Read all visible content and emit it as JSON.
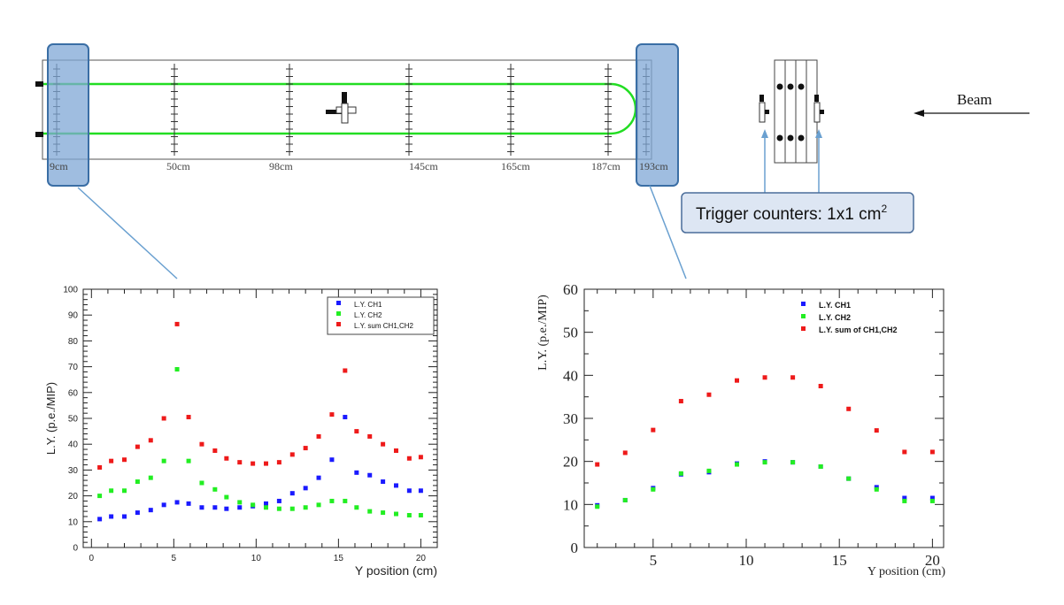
{
  "diagram": {
    "position_labels": [
      "9cm",
      "50cm",
      "98cm",
      "145cm",
      "165cm",
      "187cm",
      "193cm"
    ],
    "beam_label": "Beam",
    "trigger_label": "Trigger counters: 1x1 cm",
    "trigger_superscript": "2",
    "colors": {
      "fiber": "#22dd22",
      "highlight": "#7fa7d6",
      "highlight_border": "#3a6ea5",
      "callout_line": "#6aa0d0",
      "callout_bg": "#dde6f3"
    }
  },
  "chart_data": [
    {
      "type": "scatter",
      "title": "",
      "xlabel": "Y position (cm)",
      "ylabel": "L.Y. (p.e./MIP)",
      "xlim": [
        -0.5,
        21
      ],
      "ylim": [
        0,
        100
      ],
      "xticks": [
        0,
        5,
        10,
        15,
        20
      ],
      "yticks": [
        0,
        10,
        20,
        30,
        40,
        50,
        60,
        70,
        80,
        90,
        100
      ],
      "legend_position": "top-right",
      "series": [
        {
          "name": "L.Y. CH1",
          "color": "#1a1aff",
          "x": [
            0.5,
            1.2,
            2.0,
            2.8,
            3.6,
            4.4,
            5.2,
            5.9,
            6.7,
            7.5,
            8.2,
            9.0,
            9.8,
            10.6,
            11.4,
            12.2,
            13.0,
            13.8,
            14.6,
            15.4,
            16.1,
            16.9,
            17.7,
            18.5,
            19.3,
            20.0
          ],
          "y": [
            11,
            12,
            12,
            13.5,
            14.5,
            16.5,
            17.5,
            17,
            15.5,
            15.5,
            15,
            15.5,
            16,
            17,
            18,
            21,
            23,
            27,
            34,
            50.5,
            29,
            28,
            25.5,
            24,
            22,
            22
          ]
        },
        {
          "name": "L.Y. CH2",
          "color": "#22ee22",
          "x": [
            0.5,
            1.2,
            2.0,
            2.8,
            3.6,
            4.4,
            5.2,
            5.9,
            6.7,
            7.5,
            8.2,
            9.0,
            9.8,
            10.6,
            11.4,
            12.2,
            13.0,
            13.8,
            14.6,
            15.4,
            16.1,
            16.9,
            17.7,
            18.5,
            19.3,
            20.0
          ],
          "y": [
            20,
            22,
            22,
            25.5,
            27,
            33.5,
            69,
            33.5,
            25,
            22.5,
            19.5,
            17.5,
            16.5,
            15.5,
            15,
            15,
            15.5,
            16.5,
            18,
            18,
            15.5,
            14,
            13.5,
            13,
            12.5,
            12.5
          ]
        },
        {
          "name": "L.Y. sum CH1,CH2",
          "color": "#ee1a1a",
          "x": [
            0.5,
            1.2,
            2.0,
            2.8,
            3.6,
            4.4,
            5.2,
            5.9,
            6.7,
            7.5,
            8.2,
            9.0,
            9.8,
            10.6,
            11.4,
            12.2,
            13.0,
            13.8,
            14.6,
            15.4,
            16.1,
            16.9,
            17.7,
            18.5,
            19.3,
            20.0
          ],
          "y": [
            31,
            33.5,
            34,
            39,
            41.5,
            50,
            86.5,
            50.5,
            40,
            37.5,
            34.5,
            33,
            32.5,
            32.5,
            33,
            36,
            38.5,
            43,
            51.5,
            68.5,
            45,
            43,
            40,
            37.5,
            34.5,
            35
          ]
        }
      ]
    },
    {
      "type": "scatter",
      "title": "",
      "xlabel": "Y position (cm)",
      "ylabel": "L.Y. (p.e./MIP)",
      "xlim": [
        1.3,
        20.6
      ],
      "ylim": [
        0,
        60
      ],
      "xticks": [
        5,
        10,
        15,
        20
      ],
      "yticks": [
        0,
        10,
        20,
        30,
        40,
        50,
        60
      ],
      "legend_position": "top-center",
      "series": [
        {
          "name": "L.Y. CH1",
          "color": "#1a1aff",
          "x": [
            2,
            3.5,
            5,
            6.5,
            8,
            9.5,
            11,
            12.5,
            14,
            15.5,
            17,
            18.5,
            20
          ],
          "y": [
            9.8,
            11,
            13.8,
            17,
            17.5,
            19.5,
            20,
            19.8,
            18.8,
            16,
            14,
            11.5,
            11.5
          ]
        },
        {
          "name": "L.Y. CH2",
          "color": "#22ee22",
          "x": [
            2,
            3.5,
            5,
            6.5,
            8,
            9.5,
            11,
            12.5,
            14,
            15.5,
            17,
            18.5,
            20
          ],
          "y": [
            9.5,
            11,
            13.5,
            17.2,
            17.8,
            19.3,
            19.8,
            19.8,
            18.8,
            16,
            13.5,
            10.8,
            10.8
          ]
        },
        {
          "name": "L.Y. sum of CH1,CH2",
          "color": "#ee1a1a",
          "x": [
            2,
            3.5,
            5,
            6.5,
            8,
            9.5,
            11,
            12.5,
            14,
            15.5,
            17,
            18.5,
            20
          ],
          "y": [
            19.3,
            22,
            27.3,
            34,
            35.5,
            38.8,
            39.5,
            39.5,
            37.5,
            32.2,
            27.2,
            22.2,
            22.2
          ]
        }
      ]
    }
  ]
}
